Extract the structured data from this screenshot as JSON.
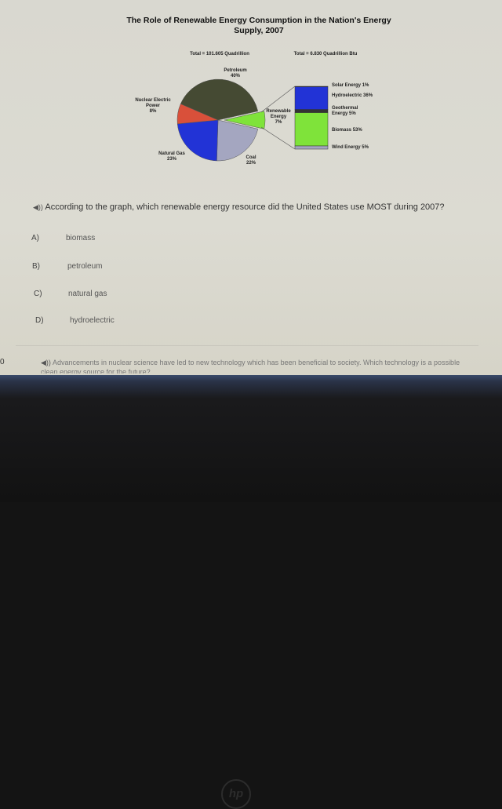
{
  "chart_data": {
    "type": "pie",
    "title": "The Role of Renewable Energy Consumption in the Nation's Energy Supply, 2007",
    "pie": {
      "total_label": "Total = 101.605 Quadrillion",
      "slices": [
        {
          "name": "Renewable Energy",
          "value": 7,
          "label": "7%",
          "color": "#7fe33a"
        },
        {
          "name": "Coal",
          "value": 22,
          "label": "22%",
          "color": "#a4a6c0"
        },
        {
          "name": "Natural Gas",
          "value": 23,
          "label": "23%",
          "color": "#2233d6"
        },
        {
          "name": "Nuclear Electric Power",
          "value": 8,
          "label": "8%",
          "color": "#d9503a"
        },
        {
          "name": "Petroleum",
          "value": 40,
          "label": "40%",
          "color": "#454a33"
        }
      ]
    },
    "stacked_bar": {
      "total_label": "Total = 6.830 Quadrillion Btu",
      "segments": [
        {
          "name": "Solar Energy",
          "value": 1,
          "label": "1%",
          "color": "#222266"
        },
        {
          "name": "Hydroelectric",
          "value": 36,
          "label": "36%",
          "color": "#2233d6"
        },
        {
          "name": "Geothermal Energy",
          "value": 5,
          "label": "5%",
          "color": "#333333"
        },
        {
          "name": "Biomass",
          "value": 53,
          "label": "53%",
          "color": "#7fe33a"
        },
        {
          "name": "Wind Energy",
          "value": 5,
          "label": "5%",
          "color": "#a4a6c0"
        }
      ]
    }
  },
  "question": {
    "speaker_icon": "speaker-icon",
    "text": "According to the graph, which renewable energy resource did the United States use MOST during 2007?",
    "options": [
      {
        "letter": "A)",
        "text": "biomass"
      },
      {
        "letter": "B)",
        "text": "petroleum"
      },
      {
        "letter": "C)",
        "text": "natural gas"
      },
      {
        "letter": "D)",
        "text": "hydroelectric"
      }
    ]
  },
  "next_question": {
    "number": "0",
    "text": "Advancements in nuclear science have led to new technology which has been beneficial to society. Which technology is a possible clean energy source for the future?"
  },
  "laptop_logo": "hp"
}
